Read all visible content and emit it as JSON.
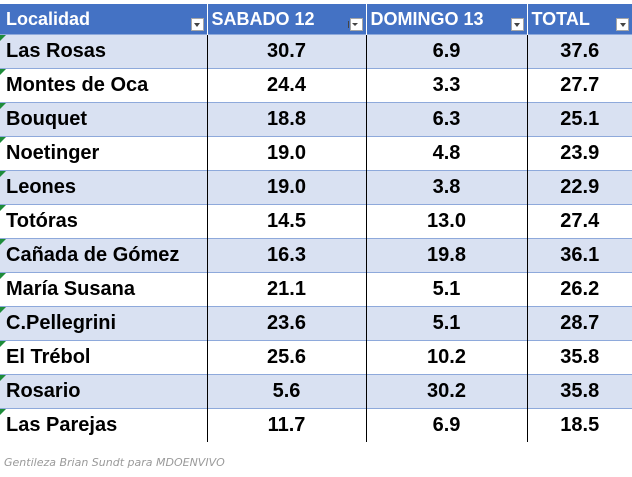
{
  "table": {
    "headers": [
      "Localidad",
      "SABADO 12",
      "DOMINGO 13",
      "TOTAL"
    ],
    "header_filters": [
      "filter-dropdown-icon",
      "sort-filter-icon",
      "filter-dropdown-icon",
      "filter-dropdown-icon"
    ],
    "rows": [
      [
        "Las Rosas",
        "30.7",
        "6.9",
        "37.6"
      ],
      [
        "Montes de Oca",
        "24.4",
        "3.3",
        "27.7"
      ],
      [
        "Bouquet",
        "18.8",
        "6.3",
        "25.1"
      ],
      [
        "Noetinger",
        "19.0",
        "4.8",
        "23.9"
      ],
      [
        "Leones",
        "19.0",
        "3.8",
        "22.9"
      ],
      [
        "Totóras",
        "14.5",
        "13.0",
        "27.4"
      ],
      [
        "Cañada de Gómez",
        "16.3",
        "19.8",
        "36.1"
      ],
      [
        "María Susana",
        "21.1",
        "5.1",
        "26.2"
      ],
      [
        "C.Pellegrini",
        "23.6",
        "5.1",
        "28.7"
      ],
      [
        "El Trébol",
        "25.6",
        "10.2",
        "35.8"
      ],
      [
        "Rosario",
        "5.6",
        "30.2",
        "35.8"
      ],
      [
        "Las Parejas",
        "11.7",
        "6.9",
        "18.5"
      ]
    ]
  },
  "colors": {
    "header_bg": "#4472c4",
    "band_bg": "#d9e1f2",
    "cell_flag": "#1e8c3a"
  },
  "caption": "Gentileza Brian Sundt para MDOENVIVO"
}
